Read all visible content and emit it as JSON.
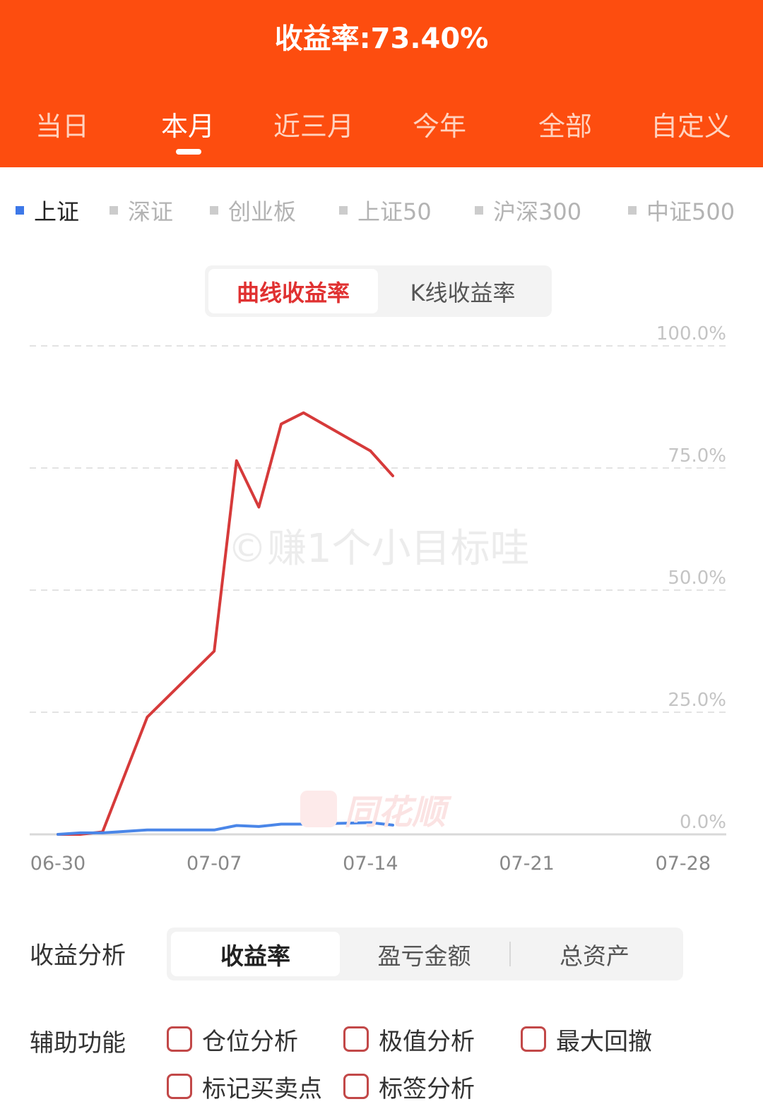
{
  "header": {
    "title": "收益率:73.40%",
    "period_tabs": [
      {
        "label": "当日",
        "active": false
      },
      {
        "label": "本月",
        "active": true
      },
      {
        "label": "近三月",
        "active": false
      },
      {
        "label": "今年",
        "active": false
      },
      {
        "label": "全部",
        "active": false
      },
      {
        "label": "自定义",
        "active": false
      }
    ]
  },
  "index_selector": [
    {
      "label": "上证",
      "active": true
    },
    {
      "label": "深证",
      "active": false
    },
    {
      "label": "创业板",
      "active": false
    },
    {
      "label": "上证50",
      "active": false
    },
    {
      "label": "沪深300",
      "active": false
    },
    {
      "label": "中证500",
      "active": false
    }
  ],
  "chart_mode": {
    "options": [
      {
        "label": "曲线收益率",
        "active": true
      },
      {
        "label": "K线收益率",
        "active": false
      }
    ]
  },
  "watermark": "©赚1个小目标哇",
  "brand_watermark": "同花顺",
  "chart_data": {
    "type": "line",
    "x_ticks": [
      "06-30",
      "07-07",
      "07-14",
      "07-21",
      "07-28"
    ],
    "y_ticks": [
      "100.0%",
      "75.0%",
      "50.0%",
      "25.0%",
      "0.0%"
    ],
    "ylim": [
      0,
      100
    ],
    "y_axis_side": "right",
    "grid": "dashed-horizontal",
    "series": [
      {
        "color": "#d63a3a",
        "points": [
          [
            "06-30",
            0.0
          ],
          [
            "07-01",
            0.0
          ],
          [
            "07-02",
            0.5
          ],
          [
            "07-04",
            24.0
          ],
          [
            "07-07",
            37.5
          ],
          [
            "07-08",
            76.5
          ],
          [
            "07-09",
            67.0
          ],
          [
            "07-10",
            84.0
          ],
          [
            "07-11",
            86.3
          ],
          [
            "07-14",
            78.5
          ],
          [
            "07-15",
            73.4
          ]
        ]
      },
      {
        "color": "#4a86e8",
        "points": [
          [
            "06-30",
            0.0
          ],
          [
            "07-01",
            0.3
          ],
          [
            "07-02",
            0.3
          ],
          [
            "07-04",
            0.9
          ],
          [
            "07-07",
            0.9
          ],
          [
            "07-08",
            1.8
          ],
          [
            "07-09",
            1.6
          ],
          [
            "07-10",
            2.1
          ],
          [
            "07-11",
            2.1
          ],
          [
            "07-14",
            2.4
          ],
          [
            "07-15",
            1.9
          ]
        ]
      }
    ]
  },
  "analysis": {
    "label": "收益分析",
    "options": [
      {
        "label": "收益率",
        "active": true
      },
      {
        "label": "盈亏金额",
        "active": false
      },
      {
        "label": "总资产",
        "active": false
      }
    ]
  },
  "aux": {
    "label": "辅助功能",
    "options": [
      {
        "label": "仓位分析",
        "checked": false
      },
      {
        "label": "极值分析",
        "checked": false
      },
      {
        "label": "最大回撤",
        "checked": false
      },
      {
        "label": "标记买卖点",
        "checked": false
      },
      {
        "label": "标签分析",
        "checked": false
      }
    ]
  }
}
